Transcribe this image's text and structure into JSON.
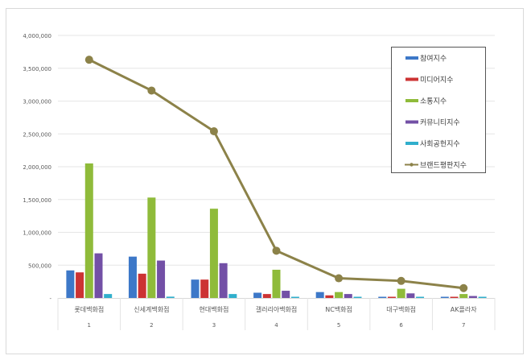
{
  "chart_data": {
    "type": "bar",
    "title": "",
    "xlabel": "",
    "ylabel": "",
    "ylim": [
      0,
      4000000
    ],
    "yticks": [
      0,
      500000,
      1000000,
      1500000,
      2000000,
      2500000,
      3000000,
      3500000,
      4000000
    ],
    "ytick_labels": [
      "-",
      "500,000",
      "1,000,000",
      "1,500,000",
      "2,000,000",
      "2,500,000",
      "3,000,000",
      "3,500,000",
      "4,000,000"
    ],
    "categories": [
      "롯데백화점",
      "신세계백화점",
      "현대백화점",
      "갤러리아백화점",
      "NC백화점",
      "대구백화점",
      "AK플라자"
    ],
    "ranks": [
      "1",
      "2",
      "3",
      "4",
      "5",
      "6",
      "7"
    ],
    "legend_position": "top-right",
    "grid": true,
    "series": [
      {
        "name": "참여지수",
        "type": "bar",
        "color": "#3d78c8",
        "values": [
          420000,
          630000,
          280000,
          80000,
          90000,
          10000,
          10000
        ]
      },
      {
        "name": "미디어지수",
        "type": "bar",
        "color": "#cc3333",
        "values": [
          390000,
          370000,
          280000,
          60000,
          40000,
          10000,
          10000
        ]
      },
      {
        "name": "소통지수",
        "type": "bar",
        "color": "#8fbb3a",
        "values": [
          2050000,
          1530000,
          1360000,
          430000,
          90000,
          140000,
          60000
        ]
      },
      {
        "name": "커뮤니티지수",
        "type": "bar",
        "color": "#7350a6",
        "values": [
          680000,
          570000,
          530000,
          110000,
          60000,
          70000,
          30000
        ]
      },
      {
        "name": "사회공헌지수",
        "type": "bar",
        "color": "#30afcc",
        "values": [
          60000,
          20000,
          60000,
          10000,
          0,
          0,
          0
        ]
      },
      {
        "name": "브랜드평판지수",
        "type": "line",
        "color": "#8c8249",
        "values": [
          3630000,
          3160000,
          2540000,
          720000,
          300000,
          260000,
          150000
        ]
      }
    ]
  }
}
